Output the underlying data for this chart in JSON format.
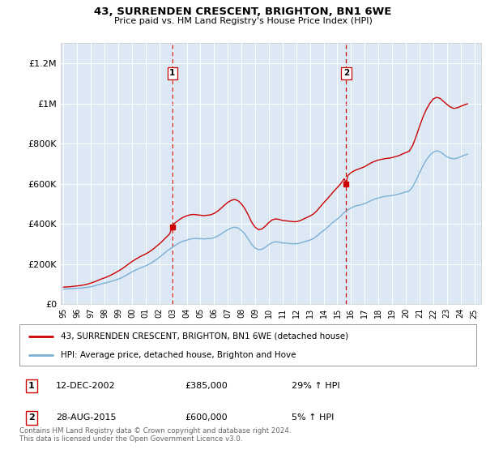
{
  "title": "43, SURRENDEN CRESCENT, BRIGHTON, BN1 6WE",
  "subtitle": "Price paid vs. HM Land Registry's House Price Index (HPI)",
  "plot_bg_color": "#dce9f5",
  "ylabel_ticks": [
    "£0",
    "£200K",
    "£400K",
    "£600K",
    "£800K",
    "£1M",
    "£1.2M"
  ],
  "ytick_values": [
    0,
    200000,
    400000,
    600000,
    800000,
    1000000,
    1200000
  ],
  "ylim": [
    0,
    1300000
  ],
  "xlim_start": 1994.8,
  "xlim_end": 2025.5,
  "red_line_color": "#cc0000",
  "blue_line_color": "#7bafd4",
  "dashed_line_color": "#cc0000",
  "legend_label_red": "43, SURRENDEN CRESCENT, BRIGHTON, BN1 6WE (detached house)",
  "legend_label_blue": "HPI: Average price, detached house, Brighton and Hove",
  "transaction1": {
    "label": "1",
    "date": "12-DEC-2002",
    "price": "£385,000",
    "hpi": "29% ↑ HPI",
    "x": 2002.95
  },
  "transaction2": {
    "label": "2",
    "date": "28-AUG-2015",
    "price": "£600,000",
    "hpi": "5% ↑ HPI",
    "x": 2015.65
  },
  "footer": "Contains HM Land Registry data © Crown copyright and database right 2024.\nThis data is licensed under the Open Government Licence v3.0.",
  "hpi_data_x": [
    1995.0,
    1995.25,
    1995.5,
    1995.75,
    1996.0,
    1996.25,
    1996.5,
    1996.75,
    1997.0,
    1997.25,
    1997.5,
    1997.75,
    1998.0,
    1998.25,
    1998.5,
    1998.75,
    1999.0,
    1999.25,
    1999.5,
    1999.75,
    2000.0,
    2000.25,
    2000.5,
    2000.75,
    2001.0,
    2001.25,
    2001.5,
    2001.75,
    2002.0,
    2002.25,
    2002.5,
    2002.75,
    2003.0,
    2003.25,
    2003.5,
    2003.75,
    2004.0,
    2004.25,
    2004.5,
    2004.75,
    2005.0,
    2005.25,
    2005.5,
    2005.75,
    2006.0,
    2006.25,
    2006.5,
    2006.75,
    2007.0,
    2007.25,
    2007.5,
    2007.75,
    2008.0,
    2008.25,
    2008.5,
    2008.75,
    2009.0,
    2009.25,
    2009.5,
    2009.75,
    2010.0,
    2010.25,
    2010.5,
    2010.75,
    2011.0,
    2011.25,
    2011.5,
    2011.75,
    2012.0,
    2012.25,
    2012.5,
    2012.75,
    2013.0,
    2013.25,
    2013.5,
    2013.75,
    2014.0,
    2014.25,
    2014.5,
    2014.75,
    2015.0,
    2015.25,
    2015.5,
    2015.75,
    2016.0,
    2016.25,
    2016.5,
    2016.75,
    2017.0,
    2017.25,
    2017.5,
    2017.75,
    2018.0,
    2018.25,
    2018.5,
    2018.75,
    2019.0,
    2019.25,
    2019.5,
    2019.75,
    2020.0,
    2020.25,
    2020.5,
    2020.75,
    2021.0,
    2021.25,
    2021.5,
    2021.75,
    2022.0,
    2022.25,
    2022.5,
    2022.75,
    2023.0,
    2023.25,
    2023.5,
    2023.75,
    2024.0,
    2024.25,
    2024.5
  ],
  "hpi_data_y": [
    75000,
    76000,
    77000,
    78000,
    79000,
    80000,
    82000,
    84000,
    87000,
    91000,
    96000,
    101000,
    105000,
    109000,
    114000,
    119000,
    125000,
    132000,
    141000,
    151000,
    161000,
    169000,
    177000,
    184000,
    191000,
    199000,
    209000,
    221000,
    233000,
    247000,
    262000,
    274000,
    286000,
    297000,
    307000,
    314000,
    319000,
    324000,
    327000,
    327000,
    326000,
    325000,
    326000,
    327000,
    331000,
    339000,
    349000,
    361000,
    371000,
    379000,
    384000,
    379000,
    367000,
    349000,
    324000,
    297000,
    279000,
    271000,
    274000,
    284000,
    297000,
    307000,
    311000,
    309000,
    305000,
    304000,
    302000,
    301000,
    301000,
    304000,
    309000,
    314000,
    319000,
    327000,
    339000,
    354000,
    367000,
    381000,
    397000,
    411000,
    424000,
    439000,
    457000,
    469000,
    479000,
    487000,
    492000,
    495000,
    501000,
    509000,
    517000,
    524000,
    529000,
    534000,
    537000,
    539000,
    541000,
    545000,
    549000,
    554000,
    559000,
    564000,
    584000,
    617000,
    654000,
    689000,
    719000,
    741000,
    757000,
    764000,
    759000,
    747000,
    734000,
    727000,
    724000,
    727000,
    734000,
    741000,
    747000
  ],
  "price_data_x": [
    1995.0,
    1995.25,
    1995.5,
    1995.75,
    1996.0,
    1996.25,
    1996.5,
    1996.75,
    1997.0,
    1997.25,
    1997.5,
    1997.75,
    1998.0,
    1998.25,
    1998.5,
    1998.75,
    1999.0,
    1999.25,
    1999.5,
    1999.75,
    2000.0,
    2000.25,
    2000.5,
    2000.75,
    2001.0,
    2001.25,
    2001.5,
    2001.75,
    2002.0,
    2002.25,
    2002.5,
    2002.75,
    2002.95,
    2003.0,
    2003.25,
    2003.5,
    2003.75,
    2004.0,
    2004.25,
    2004.5,
    2004.75,
    2005.0,
    2005.25,
    2005.5,
    2005.75,
    2006.0,
    2006.25,
    2006.5,
    2006.75,
    2007.0,
    2007.25,
    2007.5,
    2007.75,
    2008.0,
    2008.25,
    2008.5,
    2008.75,
    2009.0,
    2009.25,
    2009.5,
    2009.75,
    2010.0,
    2010.25,
    2010.5,
    2010.75,
    2011.0,
    2011.25,
    2011.5,
    2011.75,
    2012.0,
    2012.25,
    2012.5,
    2012.75,
    2013.0,
    2013.25,
    2013.5,
    2013.75,
    2014.0,
    2014.25,
    2014.5,
    2014.75,
    2015.0,
    2015.25,
    2015.5,
    2015.65,
    2015.75,
    2016.0,
    2016.25,
    2016.5,
    2016.75,
    2017.0,
    2017.25,
    2017.5,
    2017.75,
    2018.0,
    2018.25,
    2018.5,
    2018.75,
    2019.0,
    2019.25,
    2019.5,
    2019.75,
    2020.0,
    2020.25,
    2020.5,
    2020.75,
    2021.0,
    2021.25,
    2021.5,
    2021.75,
    2022.0,
    2022.25,
    2022.5,
    2022.75,
    2023.0,
    2023.25,
    2023.5,
    2023.75,
    2024.0,
    2024.25,
    2024.5
  ],
  "price_data_y": [
    85000,
    86000,
    87000,
    89000,
    91000,
    93000,
    96000,
    100000,
    105000,
    111000,
    118000,
    125000,
    131000,
    138000,
    146000,
    155000,
    165000,
    175000,
    187000,
    200000,
    212000,
    223000,
    233000,
    242000,
    250000,
    260000,
    272000,
    286000,
    300000,
    316000,
    333000,
    350000,
    385000,
    397000,
    410000,
    423000,
    433000,
    440000,
    445000,
    447000,
    445000,
    443000,
    441000,
    443000,
    445000,
    452000,
    463000,
    477000,
    493000,
    507000,
    517000,
    522000,
    515000,
    499000,
    475000,
    443000,
    407000,
    383000,
    371000,
    375000,
    389000,
    407000,
    420000,
    425000,
    422000,
    417000,
    415000,
    413000,
    411000,
    411000,
    415000,
    423000,
    431000,
    439000,
    449000,
    465000,
    485000,
    505000,
    523000,
    543000,
    563000,
    581000,
    600000,
    625000,
    600000,
    640000,
    655000,
    665000,
    672000,
    678000,
    685000,
    695000,
    705000,
    712000,
    718000,
    722000,
    725000,
    727000,
    730000,
    735000,
    740000,
    748000,
    755000,
    762000,
    790000,
    835000,
    885000,
    932000,
    970000,
    1000000,
    1022000,
    1030000,
    1025000,
    1010000,
    995000,
    982000,
    975000,
    978000,
    985000,
    992000,
    998000
  ]
}
